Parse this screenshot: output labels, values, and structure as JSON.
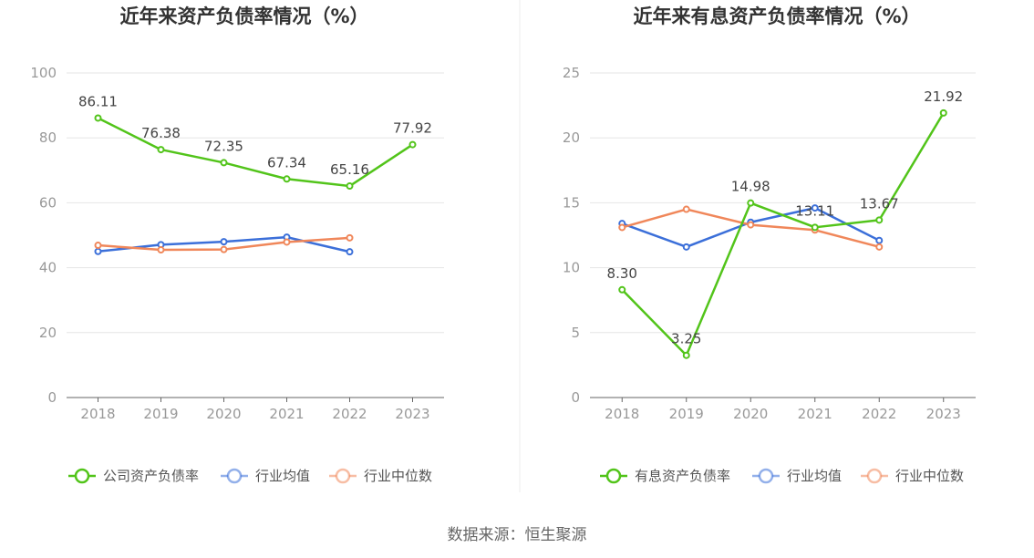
{
  "source_text": "数据来源：恒生聚源",
  "chart_data": [
    {
      "type": "line",
      "title": "近年来资产负债率情况（%）",
      "x": [
        "2018",
        "2019",
        "2020",
        "2021",
        "2022",
        "2023"
      ],
      "ylim": [
        0,
        100
      ],
      "yticks": [
        0,
        20,
        40,
        60,
        80,
        100
      ],
      "grid": true,
      "legend_position": "bottom-center",
      "series": [
        {
          "name": "公司资产负债率",
          "color": "#52c41a",
          "values": [
            86.11,
            76.38,
            72.35,
            67.34,
            65.16,
            77.92
          ],
          "labels": [
            "86.11",
            "76.38",
            "72.35",
            "67.34",
            "65.16",
            "77.92"
          ]
        },
        {
          "name": "行业均值",
          "color": "#3b6fd9",
          "values": [
            45.0,
            47.1,
            48.0,
            49.4,
            44.9,
            null
          ]
        },
        {
          "name": "行业中位数",
          "color": "#f0875a",
          "values": [
            46.9,
            45.5,
            45.6,
            47.9,
            49.2,
            null
          ]
        }
      ]
    },
    {
      "type": "line",
      "title": "近年来有息资产负债率情况（%）",
      "x": [
        "2018",
        "2019",
        "2020",
        "2021",
        "2022",
        "2023"
      ],
      "ylim": [
        0,
        25
      ],
      "yticks": [
        0,
        5,
        10,
        15,
        20,
        25
      ],
      "grid": true,
      "legend_position": "bottom-center",
      "series": [
        {
          "name": "有息资产负债率",
          "color": "#52c41a",
          "values": [
            8.3,
            3.25,
            14.98,
            13.11,
            13.67,
            21.92
          ],
          "labels": [
            "8.30",
            "3.25",
            "14.98",
            "13.11",
            "13.67",
            "21.92"
          ]
        },
        {
          "name": "行业均值",
          "color": "#3b6fd9",
          "values": [
            13.4,
            11.6,
            13.5,
            14.6,
            12.1,
            null
          ]
        },
        {
          "name": "行业中位数",
          "color": "#f0875a",
          "values": [
            13.1,
            14.5,
            13.3,
            12.9,
            11.6,
            null
          ]
        }
      ]
    }
  ]
}
